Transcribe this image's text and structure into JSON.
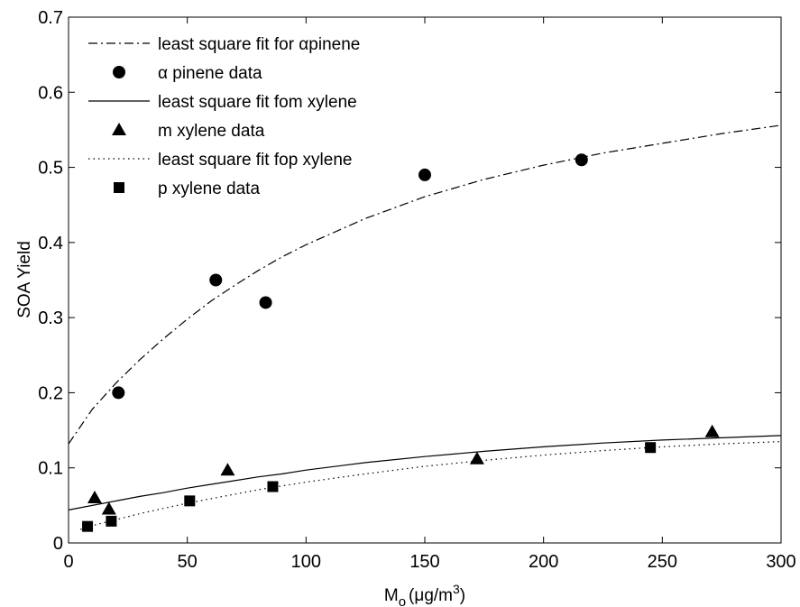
{
  "chart_data": {
    "type": "scatter",
    "title": "",
    "xlabel": "M",
    "xlabel_subscript": "o",
    "xlabel_units": "(μg/m",
    "xlabel_units_superscript": "3",
    "xlabel_units_close": ")",
    "ylabel": "SOA Yield",
    "xlim": [
      0,
      300
    ],
    "ylim": [
      0,
      0.7
    ],
    "xticks": [
      0,
      50,
      100,
      150,
      200,
      250,
      300
    ],
    "yticks": [
      0,
      0.1,
      0.2,
      0.3,
      0.4,
      0.5,
      0.6,
      0.7
    ],
    "xtick_labels": [
      "0",
      "50",
      "100",
      "150",
      "200",
      "250",
      "300"
    ],
    "ytick_labels": [
      "0",
      "0.1",
      "0.2",
      "0.3",
      "0.4",
      "0.5",
      "0.6",
      "0.7"
    ],
    "grid": false,
    "legend_position": "top-left",
    "series": [
      {
        "name": "least square fit for αpinene",
        "kind": "line",
        "dash": "dashdot",
        "x": [
          0,
          10,
          20,
          30,
          40,
          50,
          60,
          70,
          80,
          90,
          100,
          125,
          150,
          175,
          200,
          225,
          250,
          275,
          300
        ],
        "y": [
          0.132,
          0.178,
          0.213,
          0.244,
          0.272,
          0.298,
          0.322,
          0.343,
          0.363,
          0.381,
          0.397,
          0.432,
          0.461,
          0.484,
          0.503,
          0.519,
          0.532,
          0.545,
          0.556
        ]
      },
      {
        "name": "α  pinene data",
        "kind": "scatter",
        "marker": "circle",
        "x": [
          21,
          62,
          83,
          150,
          216
        ],
        "y": [
          0.2,
          0.35,
          0.32,
          0.49,
          0.51
        ]
      },
      {
        "name": "least square fit fom  xylene",
        "kind": "line",
        "dash": "solid",
        "x": [
          0,
          10,
          20,
          30,
          40,
          50,
          60,
          70,
          80,
          90,
          100,
          125,
          150,
          175,
          200,
          225,
          250,
          275,
          300
        ],
        "y": [
          0.044,
          0.05,
          0.056,
          0.062,
          0.067,
          0.073,
          0.078,
          0.083,
          0.088,
          0.092,
          0.097,
          0.107,
          0.115,
          0.122,
          0.128,
          0.133,
          0.137,
          0.14,
          0.143
        ]
      },
      {
        "name": "m  xylene data",
        "kind": "scatter",
        "marker": "triangle",
        "x": [
          11,
          17,
          67,
          172,
          271
        ],
        "y": [
          0.06,
          0.045,
          0.097,
          0.112,
          0.148
        ]
      },
      {
        "name": "least square fit fop  xylene",
        "kind": "line",
        "dash": "dotted",
        "x": [
          5,
          10,
          20,
          30,
          40,
          50,
          60,
          70,
          80,
          90,
          100,
          125,
          150,
          175,
          200,
          225,
          250,
          275,
          300
        ],
        "y": [
          0.018,
          0.023,
          0.031,
          0.039,
          0.046,
          0.053,
          0.059,
          0.065,
          0.071,
          0.076,
          0.081,
          0.092,
          0.102,
          0.11,
          0.117,
          0.123,
          0.128,
          0.132,
          0.135
        ]
      },
      {
        "name": "p  xylene data",
        "kind": "scatter",
        "marker": "square",
        "x": [
          8,
          18,
          51,
          86,
          245
        ],
        "y": [
          0.022,
          0.029,
          0.056,
          0.075,
          0.127
        ]
      }
    ]
  }
}
